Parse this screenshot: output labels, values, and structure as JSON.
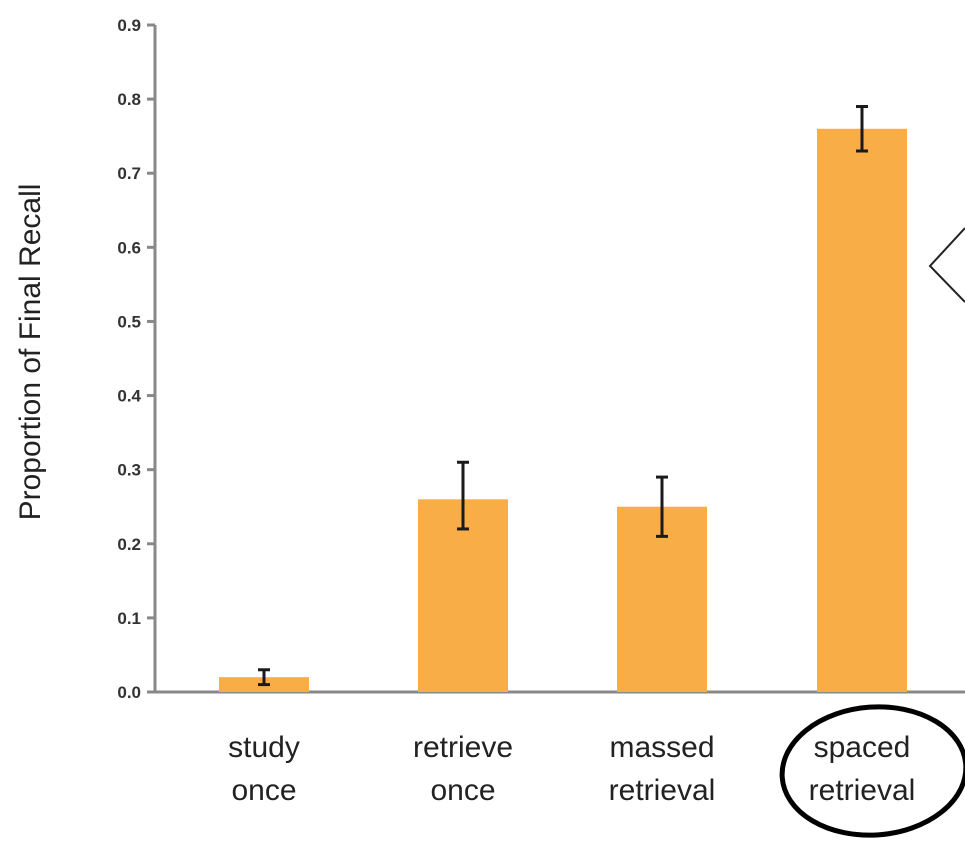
{
  "chart_data": {
    "type": "bar",
    "categories": [
      [
        "study",
        "once"
      ],
      [
        "retrieve",
        "once"
      ],
      [
        "massed",
        "retrieval"
      ],
      [
        "spaced",
        "retrieval"
      ]
    ],
    "values": [
      0.02,
      0.26,
      0.25,
      0.76
    ],
    "error_low": [
      0.01,
      0.22,
      0.21,
      0.73
    ],
    "error_high": [
      0.03,
      0.31,
      0.29,
      0.79
    ],
    "ylabel": "Proportion of Final Recall",
    "xlabel": "",
    "ylim": [
      0,
      0.9
    ],
    "yticks": [
      "0.0",
      "0.1",
      "0.2",
      "0.3",
      "0.4",
      "0.5",
      "0.6",
      "0.7",
      "0.8",
      "0.9"
    ],
    "bar_color": "#f9ad46",
    "error_color": "#1a1a1a",
    "highlighted_category": 3,
    "grid": false
  }
}
